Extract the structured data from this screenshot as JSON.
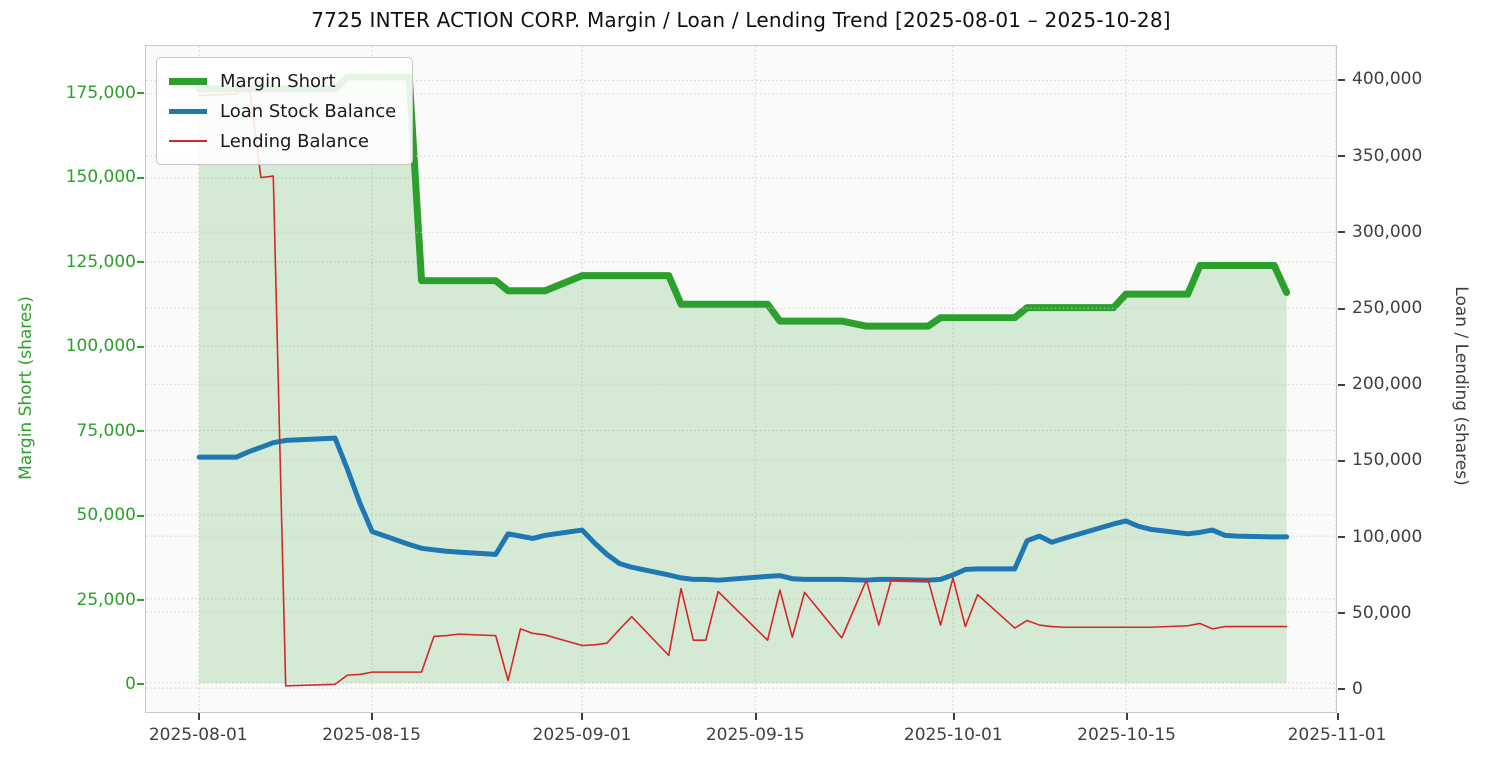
{
  "title": "7725 INTER ACTION CORP. Margin / Loan / Lending Trend [2025-08-01 – 2025-10-28]",
  "axes": {
    "left": {
      "label": "Margin Short (shares)",
      "color": "#2ca02c",
      "ticks": [
        0,
        25000,
        50000,
        75000,
        100000,
        125000,
        150000,
        175000
      ],
      "lim": [
        -8600,
        189200
      ]
    },
    "right": {
      "label": "Loan / Lending (shares)",
      "color": "#3f3f3f",
      "ticks": [
        0,
        50000,
        100000,
        150000,
        200000,
        250000,
        300000,
        350000,
        400000
      ],
      "lim": [
        -15750,
        422600
      ]
    },
    "x": {
      "ticks": [
        "2025-08-01",
        "2025-08-15",
        "2025-09-01",
        "2025-09-15",
        "2025-10-01",
        "2025-10-15",
        "2025-11-01"
      ],
      "origin": "2025-08-01",
      "lim_days": [
        -4.3,
        92
      ]
    }
  },
  "chart_data": {
    "type": "line",
    "title": "7725 INTER ACTION CORP. Margin / Loan / Lending Trend [2025-08-01 – 2025-10-28]",
    "xlabel": "",
    "ylabel_left": "Margin Short (shares)",
    "ylabel_right": "Loan / Lending (shares)",
    "grid": true,
    "legend_position": "upper left",
    "x": [
      "2025-08-01",
      "2025-08-04",
      "2025-08-05",
      "2025-08-06",
      "2025-08-07",
      "2025-08-08",
      "2025-08-12",
      "2025-08-13",
      "2025-08-14",
      "2025-08-15",
      "2025-08-18",
      "2025-08-19",
      "2025-08-20",
      "2025-08-21",
      "2025-08-22",
      "2025-08-25",
      "2025-08-26",
      "2025-08-27",
      "2025-08-28",
      "2025-08-29",
      "2025-09-01",
      "2025-09-02",
      "2025-09-03",
      "2025-09-04",
      "2025-09-05",
      "2025-09-08",
      "2025-09-09",
      "2025-09-10",
      "2025-09-11",
      "2025-09-12",
      "2025-09-16",
      "2025-09-17",
      "2025-09-18",
      "2025-09-19",
      "2025-09-22",
      "2025-09-24",
      "2025-09-25",
      "2025-09-26",
      "2025-09-29",
      "2025-09-30",
      "2025-10-01",
      "2025-10-02",
      "2025-10-03",
      "2025-10-06",
      "2025-10-07",
      "2025-10-08",
      "2025-10-09",
      "2025-10-10",
      "2025-10-14",
      "2025-10-15",
      "2025-10-16",
      "2025-10-17",
      "2025-10-20",
      "2025-10-21",
      "2025-10-22",
      "2025-10-23",
      "2025-10-24",
      "2025-10-27",
      "2025-10-28"
    ],
    "series": [
      {
        "name": "Margin Short",
        "axis": "left",
        "color": "#2ca02c",
        "line_width": 7,
        "fill": "rgba(44,160,44,0.18)",
        "values": [
          176500,
          176500,
          176500,
          176500,
          176500,
          176500,
          176500,
          180000,
          180000,
          180000,
          180000,
          119500,
          119500,
          119500,
          119500,
          119500,
          116500,
          116500,
          116500,
          116500,
          121000,
          121000,
          121000,
          121000,
          121000,
          121000,
          112500,
          112500,
          112500,
          112500,
          112500,
          107500,
          107500,
          107500,
          107500,
          106000,
          106000,
          106000,
          106000,
          108500,
          108500,
          108500,
          108500,
          108500,
          111500,
          111500,
          111500,
          111500,
          111500,
          115500,
          115500,
          115500,
          115500,
          124000,
          124000,
          124000,
          124000,
          124000,
          116000
        ]
      },
      {
        "name": "Loan Stock Balance",
        "axis": "right",
        "color": "#1f77b4",
        "line_width": 5,
        "fill": null,
        "values": [
          152000,
          152000,
          155500,
          158500,
          161500,
          163000,
          164500,
          144000,
          122000,
          103000,
          94500,
          92000,
          91000,
          90000,
          89500,
          88000,
          101500,
          100000,
          98500,
          100500,
          104000,
          95500,
          88000,
          82000,
          79500,
          74500,
          72500,
          71500,
          71500,
          71000,
          73500,
          74000,
          72000,
          71500,
          71500,
          71000,
          71500,
          71500,
          71000,
          71500,
          74500,
          78000,
          78500,
          78500,
          97000,
          100000,
          96000,
          98500,
          108000,
          110000,
          106500,
          104500,
          101500,
          102500,
          104000,
          100500,
          100000,
          99500,
          99500
        ]
      },
      {
        "name": "Lending Balance",
        "axis": "right",
        "color": "#d62728",
        "line_width": 1.6,
        "fill": null,
        "values": [
          390000,
          391000,
          400000,
          336000,
          337000,
          1500,
          2500,
          8500,
          9000,
          10500,
          10500,
          10500,
          34000,
          34500,
          35500,
          34500,
          5000,
          39000,
          36000,
          35000,
          28000,
          28500,
          29500,
          38500,
          47000,
          21500,
          65500,
          31500,
          31500,
          63500,
          31500,
          64500,
          33500,
          63000,
          33000,
          71000,
          41500,
          71000,
          71000,
          41500,
          72500,
          40500,
          61500,
          39500,
          44500,
          41500,
          40500,
          40000,
          40000,
          40000,
          40000,
          40000,
          41000,
          42500,
          39000,
          40500,
          40500,
          40500,
          40500
        ]
      }
    ]
  }
}
